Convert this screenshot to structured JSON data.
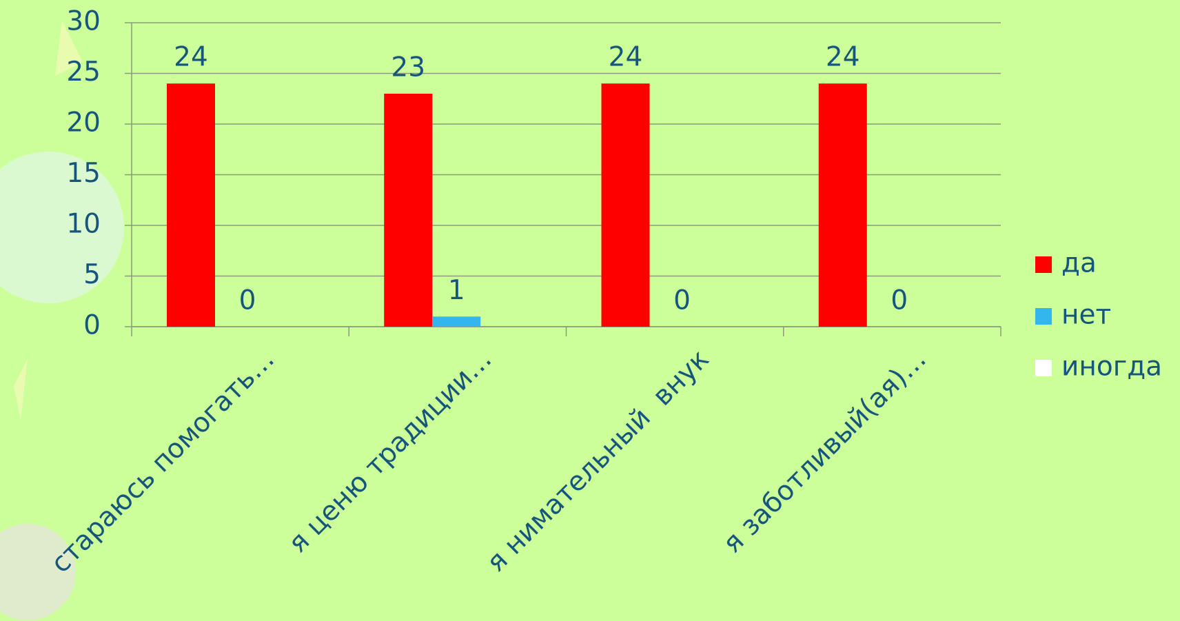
{
  "chart_data": {
    "type": "bar",
    "categories": [
      "стараюсь помогать…",
      "я ценю традиции…",
      "я нимательный  внук",
      "я заботливый(ая)…"
    ],
    "series": [
      {
        "name": "да",
        "color": "#ff0000",
        "values": [
          24,
          23,
          24,
          24
        ]
      },
      {
        "name": "нет",
        "color": "#33b5ee",
        "values": [
          0,
          1,
          0,
          0
        ]
      },
      {
        "name": "иногда",
        "color": "#ffffff",
        "values": [
          null,
          null,
          null,
          null
        ]
      }
    ],
    "ylim": [
      0,
      30
    ],
    "yticks": [
      0,
      5,
      10,
      15,
      20,
      25,
      30
    ],
    "grid": true,
    "legend": "right"
  }
}
